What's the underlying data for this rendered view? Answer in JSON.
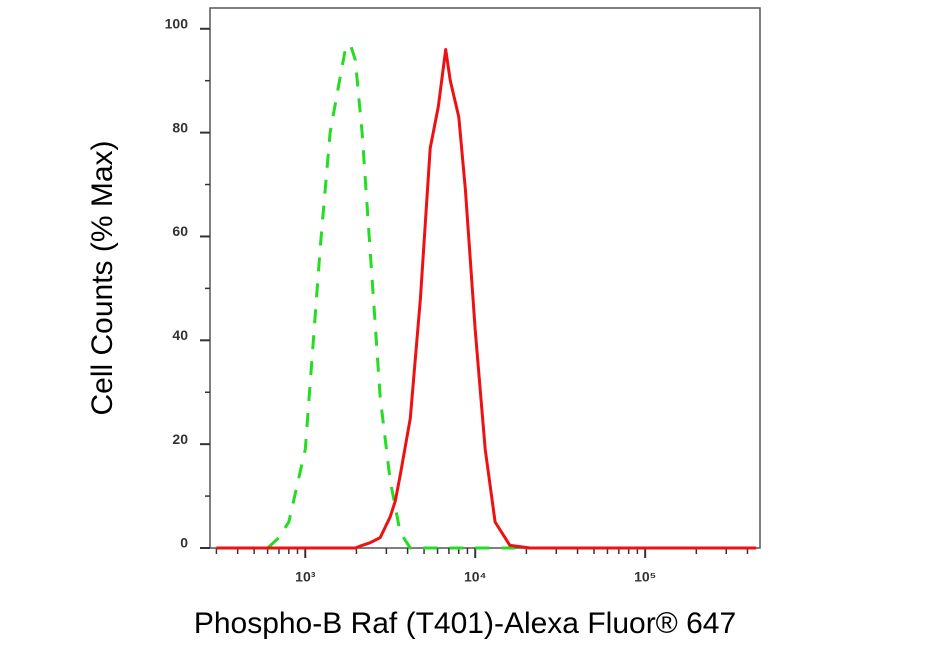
{
  "chart_data": {
    "type": "line",
    "xlabel": "Phospho-B Raf (T401)-Alexa Fluor® 647",
    "ylabel": "Cell Counts (% Max)",
    "x_scale": "log",
    "x": [
      300,
      500,
      600,
      700,
      800,
      1000,
      1225,
      1400,
      1550,
      1720,
      1840,
      1970,
      2160,
      2400,
      2760,
      3160,
      3380,
      3620,
      4150,
      4760,
      5430,
      6060,
      6700,
      7130,
      8000,
      8750,
      10000,
      11450,
      13100,
      16000,
      21000,
      50000,
      200000,
      450000
    ],
    "series": [
      {
        "color": "#22dd22",
        "dashed": true,
        "values": [
          0,
          0,
          0,
          2,
          5,
          19,
          58,
          80,
          88,
          96,
          97,
          94,
          80,
          58,
          29,
          13,
          8,
          3,
          0,
          0,
          0,
          0,
          0,
          0,
          0,
          0,
          0,
          0,
          0,
          0,
          0,
          0,
          0,
          0
        ]
      },
      {
        "color": "#ee1111",
        "dashed": false,
        "values": [
          0,
          0,
          0,
          0,
          0,
          0,
          0,
          0,
          0,
          0,
          0,
          0,
          0.5,
          1,
          2,
          6,
          9,
          14,
          25,
          48,
          77,
          85,
          96,
          90,
          83,
          69,
          42,
          19,
          5,
          0.5,
          0,
          0,
          0,
          0
        ]
      }
    ],
    "xlim": [
      275,
      474000
    ],
    "xticks": [
      {
        "value": 1000,
        "label": "10³"
      },
      {
        "value": 10000,
        "label": "10⁴"
      },
      {
        "value": 100000,
        "label": "10⁵"
      }
    ],
    "xminorticks": [
      300,
      400,
      500,
      600,
      700,
      800,
      900,
      2000,
      3000,
      4000,
      5000,
      6000,
      7000,
      8000,
      9000,
      20000,
      30000,
      40000,
      50000,
      60000,
      70000,
      80000,
      90000,
      200000,
      300000,
      400000
    ],
    "ylim": [
      0,
      104
    ],
    "yticks": [
      0,
      20,
      40,
      60,
      80,
      100
    ],
    "yminorticks": [
      10,
      30,
      50,
      70,
      90
    ]
  }
}
